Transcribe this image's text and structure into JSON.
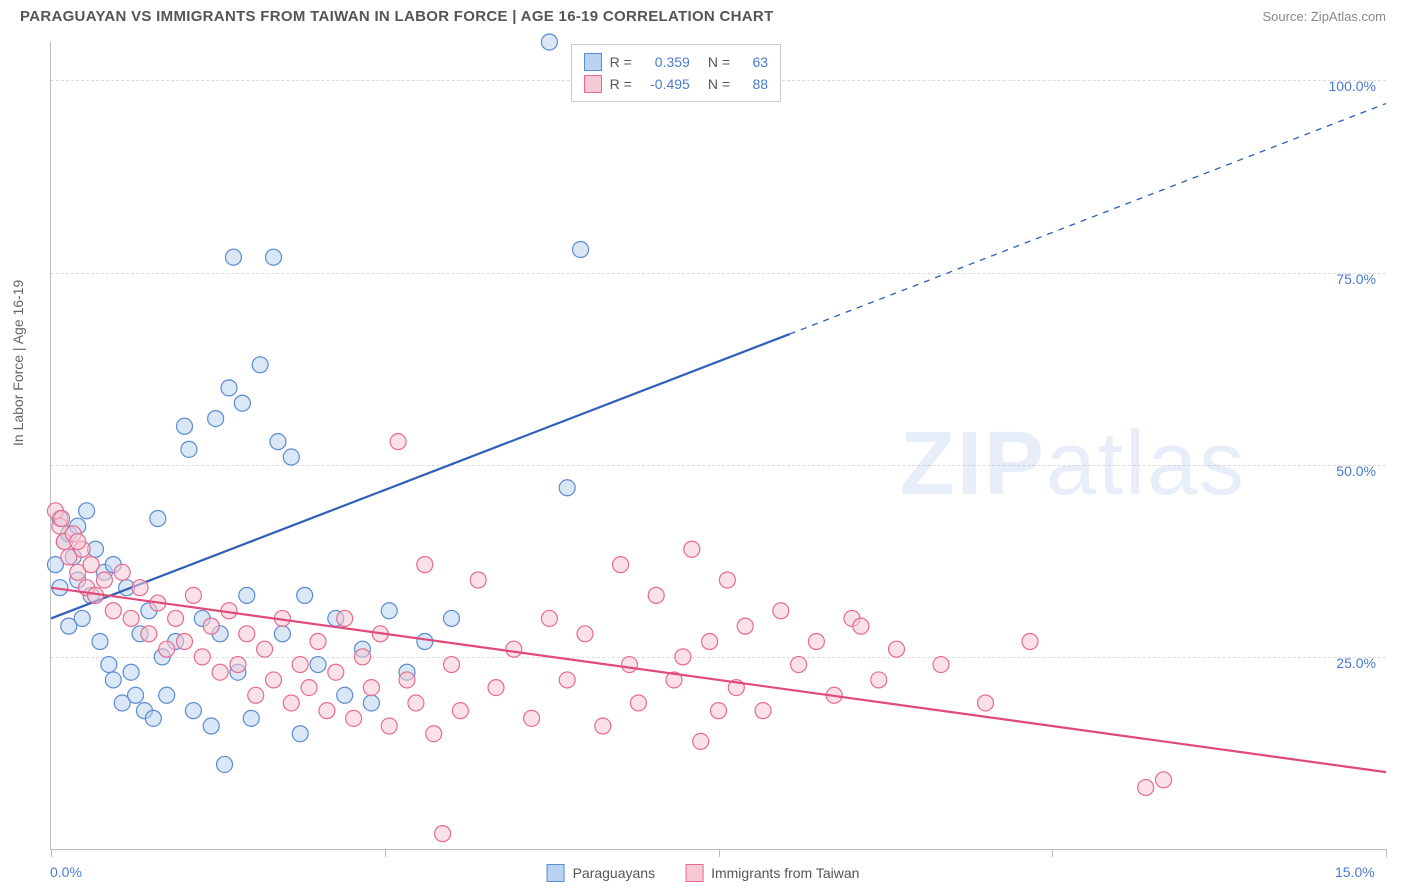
{
  "header": {
    "title": "PARAGUAYAN VS IMMIGRANTS FROM TAIWAN IN LABOR FORCE | AGE 16-19 CORRELATION CHART",
    "source": "Source: ZipAtlas.com"
  },
  "watermark": {
    "bold": "ZIP",
    "light": "atlas"
  },
  "chart": {
    "type": "scatter",
    "ylabel": "In Labor Force | Age 16-19",
    "xlim": [
      0,
      15
    ],
    "ylim": [
      0,
      105
    ],
    "x_ticks_pct": [
      0,
      25,
      50,
      75,
      100
    ],
    "x_axis_labels": [
      {
        "text": "0.0%",
        "pos_pct": 0
      },
      {
        "text": "15.0%",
        "pos_pct": 100
      }
    ],
    "y_gridlines": [
      {
        "value": 25,
        "label": "25.0%"
      },
      {
        "value": 50,
        "label": "50.0%"
      },
      {
        "value": 75,
        "label": "75.0%"
      },
      {
        "value": 100,
        "label": "100.0%"
      }
    ],
    "legend_top": {
      "rows": [
        {
          "swatch_fill": "#b9d3f0",
          "swatch_stroke": "#5b8bd4",
          "r_label": "R =",
          "r_val": "0.359",
          "n_label": "N =",
          "n_val": "63"
        },
        {
          "swatch_fill": "#f6c9d4",
          "swatch_stroke": "#e86b8f",
          "r_label": "R =",
          "r_val": "-0.495",
          "n_label": "N =",
          "n_val": "88"
        }
      ]
    },
    "legend_bottom": [
      {
        "swatch_fill": "#b9d3f0",
        "swatch_stroke": "#5b8bd4",
        "label": "Paraguayans"
      },
      {
        "swatch_fill": "#f6c9d4",
        "swatch_stroke": "#e86b8f",
        "label": "Immigrants from Taiwan"
      }
    ],
    "series": [
      {
        "name": "paraguayans",
        "color_fill": "#b9d3f0",
        "color_stroke": "#5b8bd4",
        "marker_radius": 8,
        "trend": {
          "solid": {
            "x1": 0,
            "y1": 30,
            "x2": 8.3,
            "y2": 67
          },
          "dashed": {
            "x1": 8.3,
            "y1": 67,
            "x2": 15,
            "y2": 97
          },
          "stroke": "#2f5fb8",
          "width": 2.2
        },
        "points": [
          [
            0.1,
            43
          ],
          [
            0.15,
            40
          ],
          [
            0.2,
            41
          ],
          [
            0.25,
            38
          ],
          [
            0.3,
            35
          ],
          [
            0.3,
            42
          ],
          [
            0.35,
            30
          ],
          [
            0.4,
            44
          ],
          [
            0.45,
            33
          ],
          [
            0.5,
            39
          ],
          [
            0.55,
            27
          ],
          [
            0.6,
            36
          ],
          [
            0.65,
            24
          ],
          [
            0.7,
            22
          ],
          [
            0.7,
            37
          ],
          [
            0.8,
            19
          ],
          [
            0.85,
            34
          ],
          [
            0.9,
            23
          ],
          [
            0.95,
            20
          ],
          [
            1.0,
            28
          ],
          [
            1.05,
            18
          ],
          [
            1.1,
            31
          ],
          [
            1.15,
            17
          ],
          [
            1.2,
            43
          ],
          [
            1.25,
            25
          ],
          [
            1.3,
            20
          ],
          [
            1.4,
            27
          ],
          [
            1.5,
            55
          ],
          [
            1.55,
            52
          ],
          [
            1.6,
            18
          ],
          [
            1.7,
            30
          ],
          [
            1.8,
            16
          ],
          [
            1.85,
            56
          ],
          [
            1.9,
            28
          ],
          [
            1.95,
            11
          ],
          [
            2.0,
            60
          ],
          [
            2.05,
            77
          ],
          [
            2.1,
            23
          ],
          [
            2.15,
            58
          ],
          [
            2.2,
            33
          ],
          [
            2.25,
            17
          ],
          [
            2.35,
            63
          ],
          [
            2.5,
            77
          ],
          [
            2.55,
            53
          ],
          [
            2.6,
            28
          ],
          [
            2.7,
            51
          ],
          [
            2.8,
            15
          ],
          [
            2.85,
            33
          ],
          [
            3.0,
            24
          ],
          [
            3.2,
            30
          ],
          [
            3.3,
            20
          ],
          [
            3.5,
            26
          ],
          [
            3.6,
            19
          ],
          [
            3.8,
            31
          ],
          [
            4.0,
            23
          ],
          [
            4.2,
            27
          ],
          [
            4.5,
            30
          ],
          [
            5.6,
            105
          ],
          [
            5.8,
            47
          ],
          [
            5.95,
            78
          ],
          [
            0.05,
            37
          ],
          [
            0.1,
            34
          ],
          [
            0.2,
            29
          ]
        ]
      },
      {
        "name": "taiwan",
        "color_fill": "#f6c9d4",
        "color_stroke": "#e86b8f",
        "marker_radius": 8,
        "trend": {
          "solid": {
            "x1": 0,
            "y1": 34,
            "x2": 15,
            "y2": 10
          },
          "stroke": "#e04a7a",
          "width": 2.2
        },
        "points": [
          [
            0.05,
            44
          ],
          [
            0.1,
            42
          ],
          [
            0.15,
            40
          ],
          [
            0.2,
            38
          ],
          [
            0.25,
            41
          ],
          [
            0.3,
            36
          ],
          [
            0.35,
            39
          ],
          [
            0.4,
            34
          ],
          [
            0.45,
            37
          ],
          [
            0.5,
            33
          ],
          [
            0.6,
            35
          ],
          [
            0.7,
            31
          ],
          [
            0.8,
            36
          ],
          [
            0.9,
            30
          ],
          [
            1.0,
            34
          ],
          [
            1.1,
            28
          ],
          [
            1.2,
            32
          ],
          [
            1.3,
            26
          ],
          [
            1.4,
            30
          ],
          [
            1.5,
            27
          ],
          [
            1.6,
            33
          ],
          [
            1.7,
            25
          ],
          [
            1.8,
            29
          ],
          [
            1.9,
            23
          ],
          [
            2.0,
            31
          ],
          [
            2.1,
            24
          ],
          [
            2.2,
            28
          ],
          [
            2.3,
            20
          ],
          [
            2.4,
            26
          ],
          [
            2.5,
            22
          ],
          [
            2.6,
            30
          ],
          [
            2.7,
            19
          ],
          [
            2.8,
            24
          ],
          [
            2.9,
            21
          ],
          [
            3.0,
            27
          ],
          [
            3.1,
            18
          ],
          [
            3.2,
            23
          ],
          [
            3.3,
            30
          ],
          [
            3.4,
            17
          ],
          [
            3.5,
            25
          ],
          [
            3.6,
            21
          ],
          [
            3.7,
            28
          ],
          [
            3.8,
            16
          ],
          [
            3.9,
            53
          ],
          [
            4.0,
            22
          ],
          [
            4.1,
            19
          ],
          [
            4.2,
            37
          ],
          [
            4.3,
            15
          ],
          [
            4.4,
            2
          ],
          [
            4.5,
            24
          ],
          [
            4.6,
            18
          ],
          [
            4.8,
            35
          ],
          [
            5.0,
            21
          ],
          [
            5.2,
            26
          ],
          [
            5.4,
            17
          ],
          [
            5.6,
            30
          ],
          [
            5.8,
            22
          ],
          [
            6.0,
            28
          ],
          [
            6.2,
            16
          ],
          [
            6.4,
            37
          ],
          [
            6.5,
            24
          ],
          [
            6.6,
            19
          ],
          [
            6.8,
            33
          ],
          [
            7.0,
            22
          ],
          [
            7.1,
            25
          ],
          [
            7.2,
            39
          ],
          [
            7.3,
            14
          ],
          [
            7.4,
            27
          ],
          [
            7.5,
            18
          ],
          [
            7.6,
            35
          ],
          [
            7.7,
            21
          ],
          [
            7.8,
            29
          ],
          [
            8.0,
            18
          ],
          [
            8.2,
            31
          ],
          [
            8.4,
            24
          ],
          [
            8.6,
            27
          ],
          [
            8.8,
            20
          ],
          [
            9.0,
            30
          ],
          [
            9.1,
            29
          ],
          [
            9.3,
            22
          ],
          [
            9.5,
            26
          ],
          [
            10.0,
            24
          ],
          [
            10.5,
            19
          ],
          [
            11.0,
            27
          ],
          [
            12.3,
            8
          ],
          [
            12.5,
            9
          ],
          [
            0.12,
            43
          ],
          [
            0.3,
            40
          ]
        ]
      }
    ]
  }
}
